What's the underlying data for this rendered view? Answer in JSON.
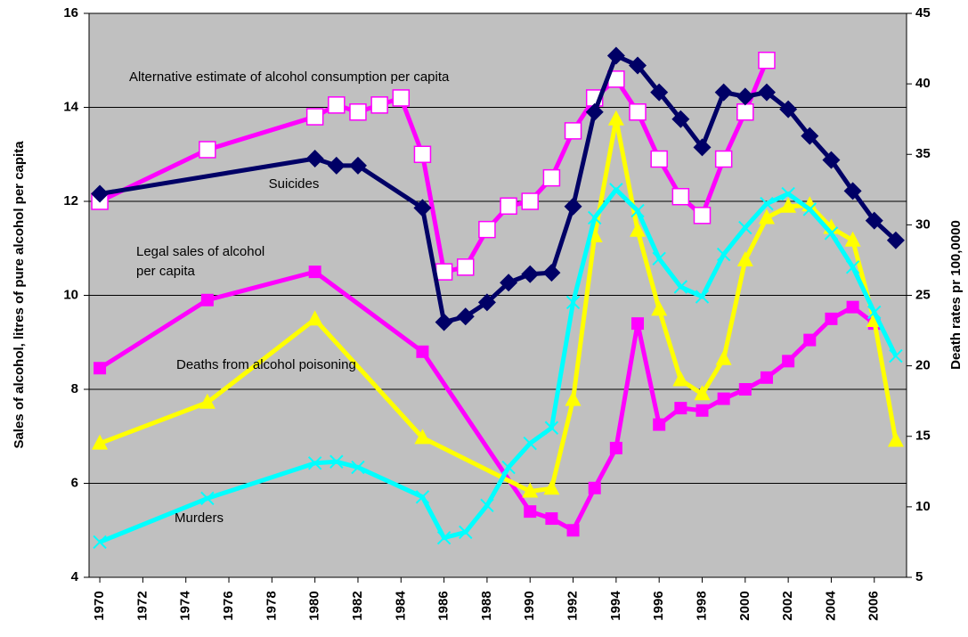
{
  "chart_data": {
    "type": "line",
    "y_label": "Sales of alcohol, litres of pure alcohol per capita",
    "y2_label": "Death rates pr 100,0000",
    "xlim": [
      1969.5,
      2007.5
    ],
    "xticks": [
      1970,
      1972,
      1974,
      1976,
      1978,
      1980,
      1982,
      1984,
      1986,
      1988,
      1990,
      1992,
      1994,
      1996,
      1998,
      2000,
      2002,
      2004,
      2006
    ],
    "ylim": [
      4,
      16
    ],
    "yticks": [
      4,
      6,
      8,
      10,
      12,
      14,
      16
    ],
    "y2lim": [
      5,
      45
    ],
    "y2ticks": [
      5,
      10,
      15,
      20,
      25,
      30,
      35,
      40,
      45
    ],
    "grid": true,
    "background": "#c0c0c0",
    "series": [
      {
        "name": "Alternative estimate of alcohol consumption per capita",
        "color": "#ff00ff",
        "marker": "open-square",
        "x": [
          1970,
          1975,
          1980,
          1981,
          1982,
          1983,
          1984,
          1985,
          1986,
          1987,
          1988,
          1989,
          1990,
          1991,
          1992,
          1993,
          1994,
          1995,
          1996,
          1997,
          1998,
          1999,
          2000,
          2001
        ],
        "values": [
          12.0,
          13.1,
          13.8,
          14.05,
          13.9,
          14.05,
          14.2,
          13.0,
          10.5,
          10.6,
          11.4,
          11.9,
          12.0,
          12.5,
          13.5,
          14.2,
          14.6,
          13.9,
          12.9,
          12.1,
          11.7,
          12.9,
          13.9,
          15.0
        ]
      },
      {
        "name": "Suicides",
        "color": "#000066",
        "marker": "diamond",
        "axis": "y2",
        "x": [
          1970,
          1980,
          1981,
          1982,
          1985,
          1986,
          1987,
          1988,
          1989,
          1990,
          1991,
          1992,
          1993,
          1994,
          1995,
          1996,
          1997,
          1998,
          1999,
          2000,
          2001,
          2002,
          2003,
          2004,
          2005,
          2006,
          2007
        ],
        "values": [
          32.2,
          34.7,
          34.2,
          34.2,
          31.2,
          23.1,
          23.5,
          24.5,
          25.9,
          26.5,
          26.6,
          31.3,
          38.0,
          42.0,
          41.3,
          39.4,
          37.5,
          35.5,
          39.4,
          39.1,
          39.4,
          38.2,
          36.3,
          34.6,
          32.4,
          30.3,
          28.9
        ]
      },
      {
        "name": "Legal sales of alcohol per capita",
        "color": "#ff00ff",
        "marker": "square",
        "x": [
          1970,
          1975,
          1980,
          1985,
          1990,
          1991,
          1992,
          1993,
          1994,
          1995,
          1996,
          1997,
          1998,
          1999,
          2000,
          2001,
          2002,
          2003,
          2004,
          2005,
          2006
        ],
        "values": [
          8.45,
          9.9,
          10.5,
          8.8,
          5.4,
          5.25,
          5.0,
          5.9,
          6.75,
          9.4,
          7.25,
          7.6,
          7.55,
          7.8,
          8.0,
          8.25,
          8.6,
          9.05,
          9.5,
          9.75,
          9.4
        ]
      },
      {
        "name": "Deaths from alcohol poisoning",
        "color": "#ffff00",
        "marker": "triangle",
        "axis": "y2",
        "x": [
          1970,
          1975,
          1980,
          1985,
          1990,
          1991,
          1992,
          1993,
          1994,
          1995,
          1996,
          1997,
          1998,
          1999,
          2000,
          2001,
          2002,
          2003,
          2004,
          2005,
          2006,
          2007
        ],
        "values": [
          14.5,
          17.4,
          23.3,
          14.9,
          11.1,
          11.3,
          17.6,
          29.2,
          37.5,
          29.6,
          24.0,
          19.0,
          18.0,
          20.5,
          27.5,
          30.5,
          31.3,
          31.4,
          29.8,
          28.9,
          23.2,
          14.7
        ]
      },
      {
        "name": "Murders",
        "color": "#00ffff",
        "marker": "cross",
        "axis": "y2",
        "x": [
          1970,
          1975,
          1980,
          1981,
          1982,
          1985,
          1986,
          1987,
          1988,
          1989,
          1990,
          1991,
          1992,
          1993,
          1994,
          1995,
          1996,
          1997,
          1998,
          1999,
          2000,
          2001,
          2002,
          2003,
          2004,
          2005,
          2006,
          2007
        ],
        "values": [
          7.5,
          10.6,
          13.1,
          13.2,
          12.8,
          10.7,
          7.8,
          8.2,
          10.1,
          12.8,
          14.5,
          15.6,
          24.5,
          30.5,
          32.5,
          31.0,
          27.6,
          25.6,
          24.9,
          27.9,
          29.8,
          31.5,
          32.2,
          31.1,
          29.4,
          27.0,
          23.8,
          20.7
        ]
      }
    ]
  }
}
